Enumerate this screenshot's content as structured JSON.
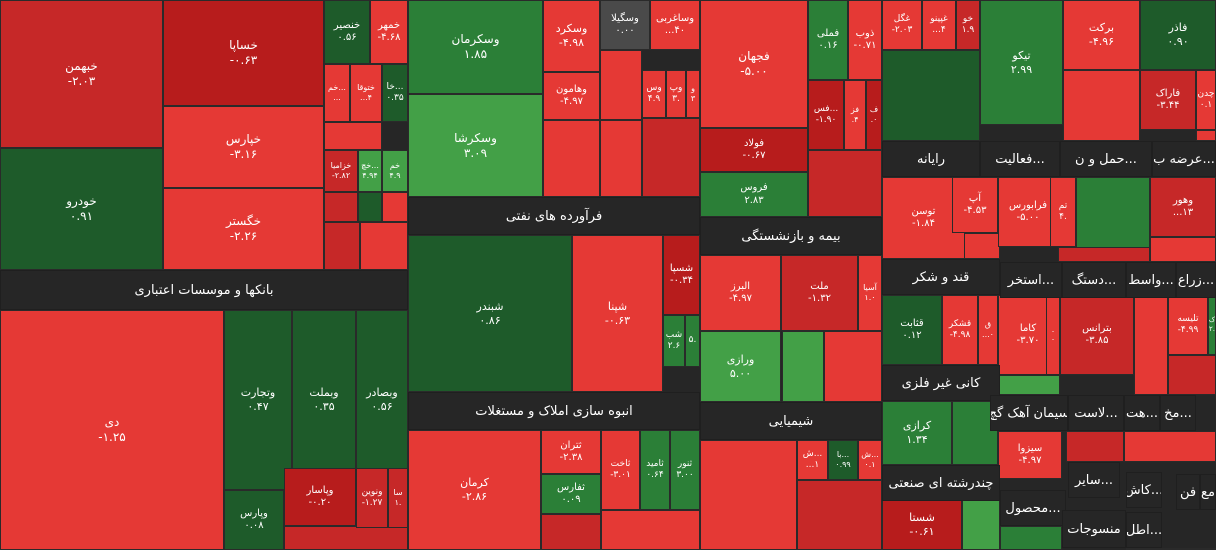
{
  "chart_data": {
    "type": "treemap",
    "colors": {
      "deep_green": "#1e5b2a",
      "green": "#2b7f37",
      "light_green": "#43a047",
      "red": "#e53935",
      "dark_red": "#c62828",
      "deep_red": "#b71c1c",
      "neutral": "#4a4a4a",
      "band": "#262626"
    },
    "sectors": [
      {
        "label": "بانکها و موسسات اعتباری"
      },
      {
        "label": "فرآورده های نفتی"
      },
      {
        "label": "انبوه سازی املاک و مستغلات"
      },
      {
        "label": "بیمه و بازنشستگی"
      },
      {
        "label": "شیمیایی"
      },
      {
        "label": "رایانه"
      },
      {
        "label": "فعالیت..."
      },
      {
        "label": "حمل و ن..."
      },
      {
        "label": "عرضه ب..."
      },
      {
        "label": "قند و شکر"
      },
      {
        "label": "استخر..."
      },
      {
        "label": "دستگ..."
      },
      {
        "label": "واسط..."
      },
      {
        "label": "زراع..."
      },
      {
        "label": "کانی غیر فلزی"
      },
      {
        "label": "سیمان آهک گچ"
      },
      {
        "label": "لاست..."
      },
      {
        "label": "هت..."
      },
      {
        "label": "مخ..."
      },
      {
        "label": "چندرشته ای صنعتی"
      },
      {
        "label": "سایر..."
      },
      {
        "label": "محصول..."
      },
      {
        "label": "منسوجات"
      },
      {
        "label": "کاش..."
      },
      {
        "label": "فن"
      },
      {
        "label": "مع"
      },
      {
        "label": "اطل..."
      }
    ],
    "tiles": [
      {
        "name": "خبهمن",
        "value": "-۲.۰۳"
      },
      {
        "name": "خودرو",
        "value": "۰.۹۱"
      },
      {
        "name": "خساپا",
        "value": "-۰.۶۳"
      },
      {
        "name": "خپارس",
        "value": "-۳.۱۶"
      },
      {
        "name": "خگستر",
        "value": "-۲.۲۶"
      },
      {
        "name": "خنصیر",
        "value": "۰.۵۶"
      },
      {
        "name": "خمهر",
        "value": "-۴.۶۸"
      },
      {
        "name": "خا...",
        "value": "۰.۳۵"
      },
      {
        "name": "خم...",
        "value": "..."
      },
      {
        "name": "ختوقا",
        "value": "...۴"
      },
      {
        "name": "خزامیا",
        "value": "-۲.۸۲"
      },
      {
        "name": "خچ...",
        "value": "۴.۹۴"
      },
      {
        "name": "خم",
        "value": "۴.۹"
      },
      {
        "name": "دی",
        "value": "-۱.۲۵"
      },
      {
        "name": "وتجارت",
        "value": "۰.۴۷"
      },
      {
        "name": "وبملت",
        "value": "۰.۳۵"
      },
      {
        "name": "وبصادر",
        "value": "۰.۵۶"
      },
      {
        "name": "وپارس",
        "value": "۰.۰۸"
      },
      {
        "name": "وپاسار",
        "value": "-۰.۲۰"
      },
      {
        "name": "ونوین",
        "value": "-۱.۲۷"
      },
      {
        "name": "سا",
        "value": "۱."
      },
      {
        "name": "وسکرمان",
        "value": "۱.۸۵"
      },
      {
        "name": "وسکرشا",
        "value": "۳.۰۹"
      },
      {
        "name": "وسکرد",
        "value": "-۴.۹۸"
      },
      {
        "name": "وسگیلا",
        "value": "۰.۰۰"
      },
      {
        "name": "وساغربی",
        "value": "...۴۰"
      },
      {
        "name": "وهامون",
        "value": "-۴.۹۷"
      },
      {
        "name": "وپ",
        "value": "۳."
      },
      {
        "name": "وس",
        "value": "۴.۹"
      },
      {
        "name": "و",
        "value": "۳"
      },
      {
        "name": "شبندر",
        "value": "۰.۸۶"
      },
      {
        "name": "شپنا",
        "value": "-۰.۶۳"
      },
      {
        "name": "شسپا",
        "value": "-۰.۳۴"
      },
      {
        "name": "شب",
        "value": "۲.۶"
      },
      {
        "name": "",
        "value": "۵."
      },
      {
        "name": "کرمان",
        "value": "-۲.۸۶"
      },
      {
        "name": "ثتران",
        "value": "-۲.۳۸"
      },
      {
        "name": "ثفارس",
        "value": "۰.۰۹"
      },
      {
        "name": "ثاخت",
        "value": "-۳.۰۱"
      },
      {
        "name": "ثامید",
        "value": "۰.۶۴"
      },
      {
        "name": "ثنور",
        "value": "۳.۰۰"
      },
      {
        "name": "فجهان",
        "value": "-۵.۰۰"
      },
      {
        "name": "فملی",
        "value": "۰.۱۶"
      },
      {
        "name": "ذوب",
        "value": "-۰.۷۱"
      },
      {
        "name": "فولاد",
        "value": "-۰.۶۷"
      },
      {
        "name": "فس...",
        "value": "-۱.۹۰"
      },
      {
        "name": "فز",
        "value": ".۴"
      },
      {
        "name": "ف",
        "value": ".۰"
      },
      {
        "name": "فروس",
        "value": "۲.۸۳"
      },
      {
        "name": "البرز",
        "value": "-۴.۹۷"
      },
      {
        "name": "ملت",
        "value": "-۱.۳۲"
      },
      {
        "name": "آسیا",
        "value": "۱.۰"
      },
      {
        "name": "ورازی",
        "value": "۵.۰۰"
      },
      {
        "name": "ش...",
        "value": "...۱"
      },
      {
        "name": "با...",
        "value": "۰.۹۹"
      },
      {
        "name": "ش...",
        "value": "۰.۱"
      },
      {
        "name": "غگل",
        "value": "-۲.۰۳"
      },
      {
        "name": "غپینو",
        "value": "...۴"
      },
      {
        "name": "خو",
        "value": "۱.۹"
      },
      {
        "name": "تیکو",
        "value": "۲.۹۹"
      },
      {
        "name": "برکت",
        "value": "-۴.۹۶"
      },
      {
        "name": "فاذر",
        "value": "۰.۹۰"
      },
      {
        "name": "فاراک",
        "value": "-۳.۴۴"
      },
      {
        "name": "چدن",
        "value": "۰.۱"
      },
      {
        "name": "توسن",
        "value": "-۱.۸۴"
      },
      {
        "name": "آپ",
        "value": "-۴.۵۳"
      },
      {
        "name": "فرابورس",
        "value": "-۵.۰۰"
      },
      {
        "name": "تم",
        "value": "۴."
      },
      {
        "name": "وهور",
        "value": "...۱۳"
      },
      {
        "name": "قثابت",
        "value": "۰.۱۲"
      },
      {
        "name": "قشکر",
        "value": "-۴.۹۸"
      },
      {
        "name": "ق",
        "value": "...۰"
      },
      {
        "name": "کاما",
        "value": "-۳.۷۰"
      },
      {
        "name": ".",
        "value": "۰"
      },
      {
        "name": "بترانس",
        "value": "-۳.۸۵"
      },
      {
        "name": "تلیسه",
        "value": "-۴.۹۹"
      },
      {
        "name": "ک",
        "value": "۲."
      },
      {
        "name": "کرازی",
        "value": "۱.۳۴"
      },
      {
        "name": "سیزوا",
        "value": "-۴.۹۷"
      },
      {
        "name": "شستا",
        "value": "-۰.۶۱"
      }
    ]
  }
}
